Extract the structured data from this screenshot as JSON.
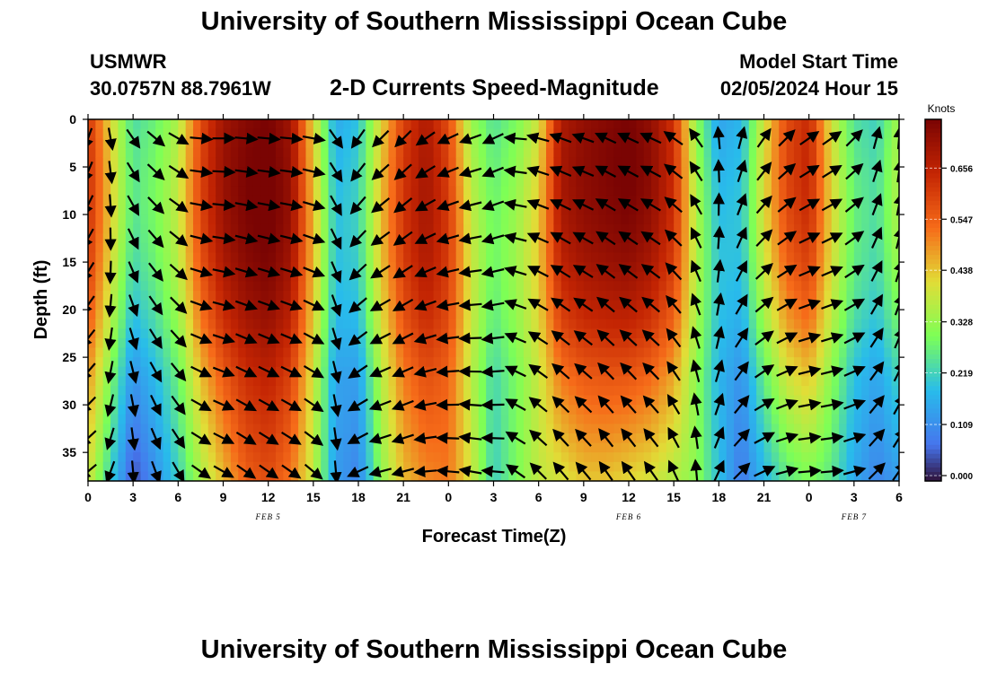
{
  "header": {
    "title": "University of Southern Mississippi Ocean Cube",
    "station_name": "USMWR",
    "station_coords": "30.0757N  88.7961W",
    "plot_title": "2-D Currents Speed-Magnitude",
    "model_label": "Model Start Time",
    "model_time": "02/05/2024 Hour 15"
  },
  "footer": {
    "title": "University of Southern Mississippi Ocean Cube"
  },
  "chart_data": {
    "type": "heatmap",
    "title": "2-D Currents Speed-Magnitude",
    "xlabel": "Forecast Time(Z)",
    "ylabel": "Depth (ft)",
    "x_range_hours": [
      0,
      54
    ],
    "ylim": [
      0,
      38
    ],
    "x_tick_labels": [
      "0",
      "3",
      "6",
      "9",
      "12",
      "15",
      "18",
      "21",
      "0",
      "3",
      "6",
      "9",
      "12",
      "15",
      "18",
      "21",
      "0",
      "3",
      "6"
    ],
    "y_ticks": [
      0,
      5,
      10,
      15,
      20,
      25,
      30,
      35
    ],
    "date_labels": [
      {
        "label": "FEB 5",
        "hour": 12
      },
      {
        "label": "FEB 6",
        "hour": 36
      },
      {
        "label": "FEB 7",
        "hour": 51
      }
    ],
    "colorbar": {
      "label": "Knots",
      "ticks": [
        "0.000",
        "0.109",
        "0.219",
        "0.328",
        "0.438",
        "0.547",
        "0.656"
      ],
      "range": [
        0,
        0.76
      ]
    },
    "colors": {
      "dark_red": "#7a0403",
      "red": "#c42503",
      "orange": "#f66b19",
      "yellow": "#e1dd37",
      "green": "#7dff56",
      "cyan": "#28bceb",
      "blue": "#4675ed",
      "dark_purple": "#30123b"
    },
    "speed_profile": {
      "time_hours": [
        0,
        1.5,
        3,
        4.5,
        6,
        7.5,
        9,
        10.5,
        12,
        13.5,
        15,
        16.5,
        18,
        19.5,
        21,
        22.5,
        24,
        25.5,
        27,
        28.5,
        30,
        31.5,
        33,
        34.5,
        36,
        37.5,
        39,
        40.5,
        42,
        43.5,
        45,
        46.5,
        48,
        49.5,
        51,
        52.5,
        54
      ],
      "surface_knots": [
        0.62,
        0.42,
        0.24,
        0.28,
        0.36,
        0.58,
        0.7,
        0.74,
        0.76,
        0.7,
        0.42,
        0.16,
        0.2,
        0.42,
        0.6,
        0.68,
        0.58,
        0.34,
        0.25,
        0.3,
        0.4,
        0.68,
        0.72,
        0.74,
        0.76,
        0.72,
        0.62,
        0.32,
        0.15,
        0.18,
        0.4,
        0.58,
        0.64,
        0.4,
        0.25,
        0.22,
        0.35
      ],
      "bottom_knots": [
        0.4,
        0.22,
        0.04,
        0.12,
        0.22,
        0.35,
        0.45,
        0.55,
        0.58,
        0.52,
        0.38,
        0.14,
        0.1,
        0.32,
        0.45,
        0.5,
        0.52,
        0.4,
        0.22,
        0.3,
        0.38,
        0.4,
        0.44,
        0.44,
        0.42,
        0.4,
        0.36,
        0.32,
        0.2,
        0.08,
        0.18,
        0.26,
        0.3,
        0.26,
        0.16,
        0.1,
        0.14
      ]
    },
    "arrow_direction_deg": [
      125,
      95,
      70,
      55,
      45,
      20,
      15,
      20,
      20,
      20,
      25,
      70,
      140,
      150,
      150,
      160,
      170,
      175,
      170,
      200,
      210,
      215,
      215,
      220,
      220,
      220,
      230,
      250,
      280,
      300,
      320,
      330,
      340,
      340,
      330,
      300,
      290
    ]
  }
}
